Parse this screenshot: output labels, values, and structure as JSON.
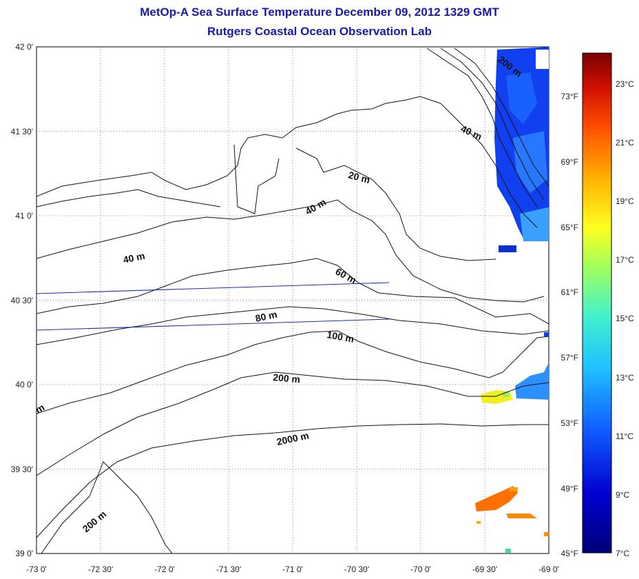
{
  "header": {
    "title": "MetOp-A Sea Surface Temperature December 09, 2012 1329 GMT",
    "subtitle": "Rutgers Coastal Ocean Observation Lab"
  },
  "map": {
    "lon_range": [
      -73,
      -69
    ],
    "lat_range": [
      39,
      42
    ],
    "lon_ticks": [
      "-73 0'",
      "-72 30'",
      "-72 0'",
      "-71 30'",
      "-71 0'",
      "-70 30'",
      "-70 0'",
      "-69 30'",
      "-69 0'"
    ],
    "lat_ticks": [
      "42 0'",
      "41 30'",
      "41 0'",
      "40 30'",
      "40 0'",
      "39 30'",
      "39 0'"
    ],
    "grid": true
  },
  "contours": [
    {
      "label": "20 m"
    },
    {
      "label": "40 m"
    },
    {
      "label": "40 m"
    },
    {
      "label": "40 m"
    },
    {
      "label": "60 m"
    },
    {
      "label": "80 m"
    },
    {
      "label": "100 m"
    },
    {
      "label": "200 m"
    },
    {
      "label": "2000 m"
    },
    {
      "label": "200 m"
    },
    {
      "label": "200 m"
    },
    {
      "label": "m"
    }
  ],
  "colorbar": {
    "celsius": [
      "23°C",
      "21°C",
      "19°C",
      "17°C",
      "15°C",
      "13°C",
      "11°C",
      "9°C",
      "7°C"
    ],
    "fahrenheit": [
      "73°F",
      "69°F",
      "65°F",
      "61°F",
      "57°F",
      "53°F",
      "49°F",
      "45°F"
    ],
    "colors": [
      "#7a0000",
      "#d01000",
      "#ff6000",
      "#ffb000",
      "#ffff20",
      "#80ff80",
      "#20e0e0",
      "#10a0ff",
      "#1040ff",
      "#0000c0",
      "#00007a"
    ]
  }
}
